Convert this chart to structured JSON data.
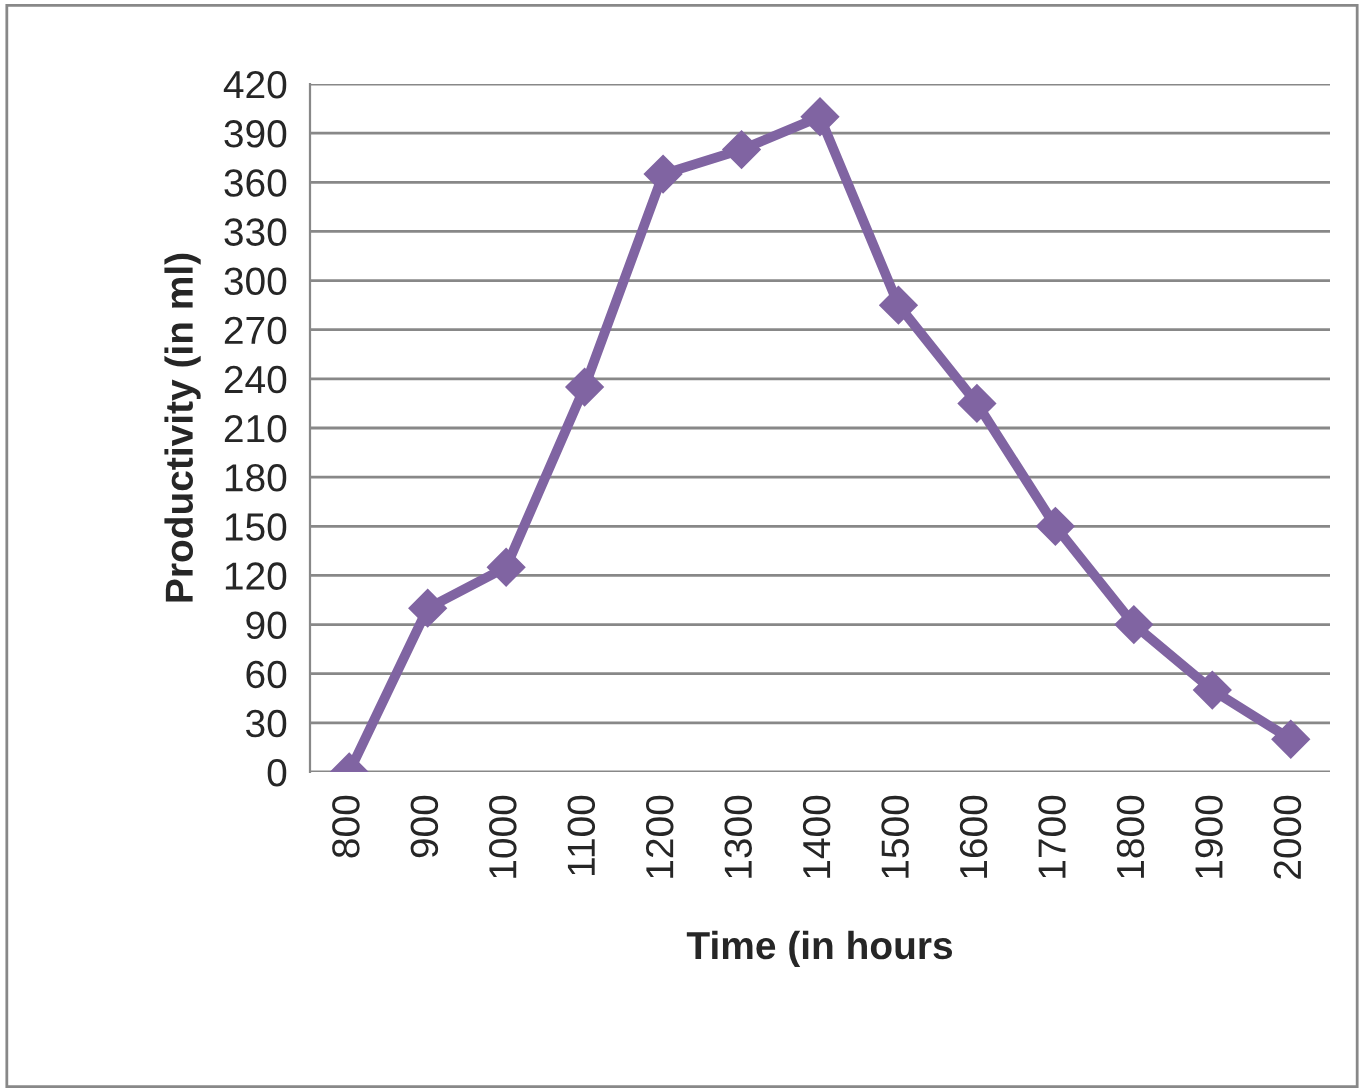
{
  "chart_data": {
    "type": "line",
    "xlabel": "Time (in hours",
    "ylabel": "Productivity (in ml)",
    "categories": [
      "800",
      "900",
      "1000",
      "1100",
      "1200",
      "1300",
      "1400",
      "1500",
      "1600",
      "1700",
      "1800",
      "1900",
      "2000"
    ],
    "series": [
      {
        "color": "#8064a2",
        "values": [
          0,
          100,
          125,
          235,
          365,
          380,
          400,
          285,
          225,
          150,
          90,
          50,
          20
        ]
      }
    ],
    "ylim": [
      0,
      420
    ],
    "yticks": [
      0,
      30,
      60,
      90,
      120,
      150,
      180,
      210,
      240,
      270,
      300,
      330,
      360,
      390,
      420
    ],
    "grid": "y",
    "marker": "diamond",
    "line_style": "solid"
  }
}
